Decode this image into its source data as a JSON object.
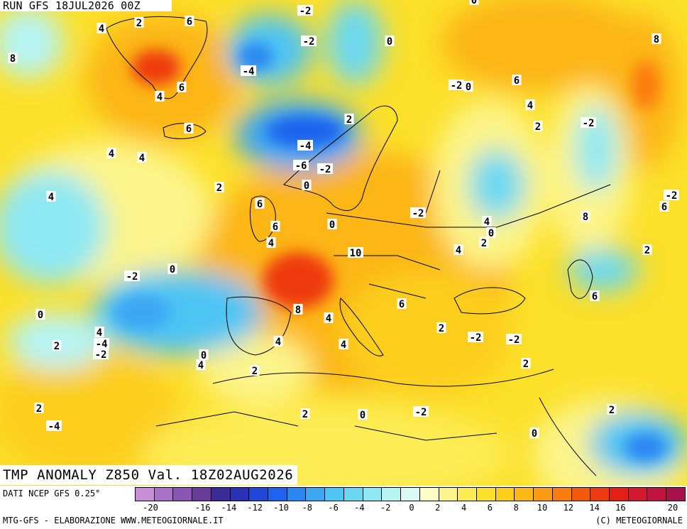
{
  "header": {
    "run_title": "RUN GFS 18JUL2026 00Z",
    "main_title": "TMP ANOMALY Z850 Val. 18Z02AUG2026"
  },
  "footer": {
    "data_source": "DATI NCEP GFS 0.25°",
    "credit_left": "MTG-GFS - ELABORAZIONE WWW.METEOGIORNALE.IT",
    "credit_right": "(C) METEOGIORNALE"
  },
  "legend": {
    "colors": [
      "#c98fd8",
      "#a872c8",
      "#8a55b4",
      "#6a3a9c",
      "#3a2a98",
      "#2a30b8",
      "#1e46d8",
      "#1e62ee",
      "#2a86f2",
      "#3aa6f4",
      "#4ec4f4",
      "#6ad8f2",
      "#8ee8f4",
      "#b6f4f4",
      "#daf8f4",
      "#fcfcc4",
      "#fcf48a",
      "#fcec54",
      "#fce02a",
      "#fcce1a",
      "#fcb616",
      "#fc9a14",
      "#fa7c10",
      "#f45a0e",
      "#ee3a10",
      "#e42014",
      "#d41830",
      "#c01440",
      "#a8104c"
    ],
    "ticks": [
      "-20",
      "-18",
      "-16",
      "-14",
      "-12",
      "-10",
      "-8",
      "-6",
      "-4",
      "-2",
      "0",
      "2",
      "4",
      "6",
      "8",
      "10",
      "12",
      "14",
      "16",
      "18",
      "20"
    ],
    "tick_labels": [
      "-20",
      "-16",
      "-14",
      "-12",
      "-10",
      "-8",
      "-6",
      "-4",
      "-2",
      "0",
      "2",
      "4",
      "6",
      "8",
      "10",
      "12",
      "14",
      "16",
      "20"
    ]
  },
  "map": {
    "contour_labels": [
      "4",
      "2",
      "6",
      "-2",
      "-2",
      "0",
      "8",
      "4",
      "6",
      "-4",
      "-2",
      "0",
      "8",
      "6",
      "4",
      "2",
      "0",
      "-2",
      "4",
      "6",
      "4",
      "2",
      "-4",
      "-6",
      "-2",
      "0",
      "2",
      "4",
      "-2",
      "6",
      "4",
      "-2",
      "8",
      "6",
      "6",
      "4",
      "0",
      "2",
      "-2",
      "0",
      "2",
      "4",
      "0",
      "10",
      "6",
      "8",
      "4",
      "6",
      "2",
      "-2",
      "-2",
      "0",
      "2",
      "4",
      "-4",
      "-2",
      "0",
      "4",
      "2",
      "2",
      "4",
      "4",
      "2",
      "2",
      "0",
      "-2",
      "-4",
      "0",
      "2"
    ]
  }
}
